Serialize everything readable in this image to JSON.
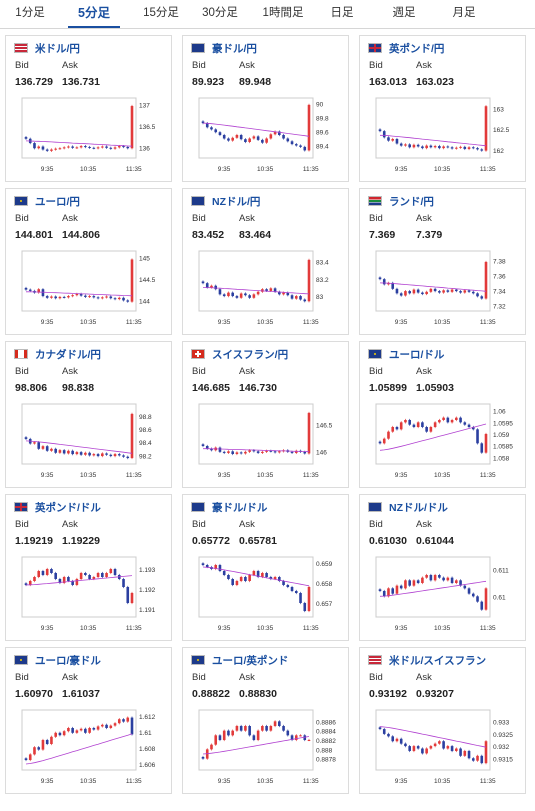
{
  "tabs": [
    "1分足",
    "5分足",
    "15分足",
    "30分足",
    "1時間足",
    "日足",
    "週足",
    "月足"
  ],
  "active_tab": 1,
  "labels": {
    "bid": "Bid",
    "ask": "Ask"
  },
  "colors": {
    "up": "#e23a3a",
    "down": "#2b3fa0",
    "ma": "#b040d0",
    "axis": "#999999",
    "accent": "#1a4fa0"
  },
  "x_ticks": [
    "9:35",
    "10:35",
    "11:35"
  ],
  "cards": [
    {
      "pair": "米ドル/円",
      "flag": "us",
      "bid": "136.729",
      "ask": "136.731",
      "y_ticks": [
        "137",
        "136.5",
        "136"
      ],
      "ylim": [
        135.8,
        137.1
      ],
      "prices": [
        136.2,
        136.1,
        135.98,
        136.02,
        135.95,
        135.92,
        135.95,
        135.97,
        135.98,
        136.0,
        136.02,
        135.99,
        136.0,
        136.03,
        136.01,
        135.99,
        135.98,
        136.0,
        136.02,
        135.99,
        135.97,
        136.0,
        136.03,
        136.01,
        135.98,
        136.96
      ],
      "ma": [
        136.15,
        136.02
      ]
    },
    {
      "pair": "豪ドル/円",
      "flag": "au",
      "bid": "89.923",
      "ask": "89.948",
      "y_ticks": [
        "90",
        "89.8",
        "89.6",
        "89.4"
      ],
      "ylim": [
        89.25,
        90.05
      ],
      "prices": [
        89.72,
        89.66,
        89.63,
        89.59,
        89.55,
        89.5,
        89.47,
        89.51,
        89.55,
        89.49,
        89.45,
        89.5,
        89.53,
        89.48,
        89.44,
        89.5,
        89.56,
        89.6,
        89.55,
        89.5,
        89.46,
        89.42,
        89.4,
        89.38,
        89.33,
        89.98
      ],
      "ma": [
        89.72,
        89.52
      ]
    },
    {
      "pair": "英ポンド/円",
      "flag": "gb",
      "bid": "163.013",
      "ask": "163.023",
      "y_ticks": [
        "163",
        "162.5",
        "162"
      ],
      "ylim": [
        161.85,
        163.2
      ],
      "prices": [
        162.45,
        162.3,
        162.22,
        162.26,
        162.15,
        162.1,
        162.13,
        162.06,
        162.12,
        162.08,
        162.04,
        162.1,
        162.06,
        162.09,
        162.04,
        162.08,
        162.06,
        162.03,
        162.05,
        162.07,
        162.02,
        162.06,
        162.04,
        162.01,
        161.98,
        163.05
      ],
      "ma": [
        162.35,
        162.08
      ]
    },
    {
      "pair": "ユーロ/円",
      "flag": "eu",
      "bid": "144.801",
      "ask": "144.806",
      "y_ticks": [
        "145",
        "144.5",
        "144"
      ],
      "ylim": [
        143.8,
        145.1
      ],
      "prices": [
        144.25,
        144.22,
        144.18,
        144.26,
        144.1,
        144.06,
        144.09,
        144.05,
        144.08,
        144.07,
        144.1,
        144.12,
        144.15,
        144.11,
        144.08,
        144.1,
        144.07,
        144.05,
        144.07,
        144.09,
        144.05,
        144.03,
        144.06,
        144.0,
        143.97,
        144.95
      ],
      "ma": [
        144.2,
        144.1
      ]
    },
    {
      "pair": "NZドル/円",
      "flag": "nz",
      "bid": "83.452",
      "ask": "83.464",
      "y_ticks": [
        "83.4",
        "83.2",
        "83"
      ],
      "ylim": [
        82.85,
        83.5
      ],
      "prices": [
        83.15,
        83.1,
        83.12,
        83.08,
        83.02,
        83.0,
        83.04,
        83.0,
        82.98,
        83.03,
        83.01,
        82.98,
        83.02,
        83.05,
        83.08,
        83.06,
        83.09,
        83.05,
        83.02,
        83.04,
        83.01,
        82.97,
        83.0,
        82.96,
        82.94,
        83.42
      ],
      "ma": [
        83.1,
        83.02
      ]
    },
    {
      "pair": "ランド/円",
      "flag": "za",
      "bid": "7.369",
      "ask": "7.379",
      "y_ticks": [
        "7.38",
        "7.36",
        "7.34",
        "7.32"
      ],
      "ylim": [
        7.315,
        7.39
      ],
      "prices": [
        7.355,
        7.348,
        7.35,
        7.342,
        7.336,
        7.333,
        7.339,
        7.336,
        7.341,
        7.337,
        7.335,
        7.338,
        7.342,
        7.339,
        7.337,
        7.34,
        7.338,
        7.341,
        7.339,
        7.337,
        7.34,
        7.338,
        7.336,
        7.332,
        7.329,
        7.378
      ],
      "ma": [
        7.35,
        7.338
      ]
    },
    {
      "pair": "カナダドル/円",
      "flag": "ca",
      "bid": "98.806",
      "ask": "98.838",
      "y_ticks": [
        "98.8",
        "98.6",
        "98.4",
        "98.2"
      ],
      "ylim": [
        98.1,
        98.95
      ],
      "prices": [
        98.45,
        98.38,
        98.4,
        98.3,
        98.34,
        98.27,
        98.3,
        98.24,
        98.28,
        98.23,
        98.27,
        98.22,
        98.25,
        98.21,
        98.24,
        98.2,
        98.22,
        98.19,
        98.23,
        98.21,
        98.19,
        98.22,
        98.2,
        98.18,
        98.16,
        98.83
      ],
      "ma": [
        98.42,
        98.22
      ]
    },
    {
      "pair": "スイスフラン/円",
      "flag": "ch",
      "bid": "146.685",
      "ask": "146.730",
      "y_ticks": [
        "146.5",
        "146"
      ],
      "ylim": [
        145.8,
        146.85
      ],
      "prices": [
        146.1,
        146.05,
        146.02,
        146.07,
        145.99,
        145.97,
        146.0,
        145.95,
        145.98,
        145.96,
        145.99,
        146.02,
        146.0,
        145.97,
        145.99,
        146.01,
        146.0,
        145.98,
        146.0,
        146.02,
        145.99,
        145.97,
        146.01,
        145.99,
        145.96,
        146.72
      ],
      "ma": [
        146.05,
        145.99
      ]
    },
    {
      "pair": "ユーロ/ドル",
      "flag": "eu",
      "bid": "1.05899",
      "ask": "1.05903",
      "y_ticks": [
        "1.06",
        "1.0595",
        "1.059",
        "1.0585",
        "1.058"
      ],
      "ylim": [
        1.0578,
        1.0602
      ],
      "prices": [
        1.0586,
        1.0588,
        1.0591,
        1.0593,
        1.0592,
        1.0595,
        1.0596,
        1.0594,
        1.0593,
        1.0595,
        1.0593,
        1.0591,
        1.0593,
        1.0595,
        1.0596,
        1.0597,
        1.0595,
        1.0596,
        1.0597,
        1.0595,
        1.0594,
        1.0593,
        1.0592,
        1.0586,
        1.0582,
        1.059
      ],
      "ma": [
        1.0583,
        1.0595
      ]
    },
    {
      "pair": "英ポンド/ドル",
      "flag": "gb",
      "bid": "1.19219",
      "ask": "1.19229",
      "y_ticks": [
        "1.193",
        "1.192",
        "1.191"
      ],
      "ylim": [
        1.1907,
        1.1935
      ],
      "prices": [
        1.1922,
        1.1924,
        1.1926,
        1.1929,
        1.1927,
        1.193,
        1.1928,
        1.1925,
        1.1923,
        1.1926,
        1.1924,
        1.1922,
        1.1925,
        1.1928,
        1.1927,
        1.1925,
        1.1926,
        1.1928,
        1.1926,
        1.1928,
        1.193,
        1.1927,
        1.1925,
        1.1921,
        1.1913,
        1.1918
      ],
      "ma": [
        1.1922,
        1.1927
      ]
    },
    {
      "pair": "豪ドル/ドル",
      "flag": "au",
      "bid": "0.65772",
      "ask": "0.65781",
      "y_ticks": [
        "0.659",
        "0.658",
        "0.657"
      ],
      "ylim": [
        0.6564,
        0.6592
      ],
      "prices": [
        0.6589,
        0.6588,
        0.6587,
        0.6589,
        0.6586,
        0.6584,
        0.6582,
        0.6579,
        0.6581,
        0.6583,
        0.6581,
        0.6584,
        0.6586,
        0.6583,
        0.6585,
        0.6583,
        0.6582,
        0.6583,
        0.6581,
        0.6579,
        0.6578,
        0.6576,
        0.6575,
        0.657,
        0.6566,
        0.6578
      ],
      "ma": [
        0.6588,
        0.6578
      ]
    },
    {
      "pair": "NZドル/ドル",
      "flag": "nz",
      "bid": "0.61030",
      "ask": "0.61044",
      "y_ticks": [
        "0.611",
        "0.61"
      ],
      "ylim": [
        0.6093,
        0.6114
      ],
      "prices": [
        0.6102,
        0.61,
        0.6103,
        0.6101,
        0.6104,
        0.6103,
        0.6106,
        0.6104,
        0.6106,
        0.6105,
        0.6107,
        0.6108,
        0.6106,
        0.6108,
        0.6107,
        0.6106,
        0.6107,
        0.6105,
        0.6106,
        0.6104,
        0.6103,
        0.6101,
        0.61,
        0.6098,
        0.6095,
        0.6103
      ],
      "ma": [
        0.61,
        0.6106
      ]
    },
    {
      "pair": "ユーロ/豪ドル",
      "flag": "eu",
      "bid": "1.60970",
      "ask": "1.61037",
      "y_ticks": [
        "1.612",
        "1.61",
        "1.608",
        "1.606"
      ],
      "ylim": [
        1.6055,
        1.6125
      ],
      "prices": [
        1.6065,
        1.6072,
        1.6081,
        1.6078,
        1.609,
        1.6085,
        1.6094,
        1.6099,
        1.6096,
        1.6101,
        1.6105,
        1.6099,
        1.6102,
        1.6104,
        1.6099,
        1.6105,
        1.6103,
        1.6107,
        1.6109,
        1.6105,
        1.6108,
        1.6111,
        1.6116,
        1.6113,
        1.6118,
        1.6097
      ],
      "ma": [
        1.606,
        1.61
      ]
    },
    {
      "pair": "ユーロ/英ポンド",
      "flag": "eu",
      "bid": "0.88822",
      "ask": "0.88830",
      "y_ticks": [
        "0.8886",
        "0.8884",
        "0.8882",
        "0.888",
        "0.8878"
      ],
      "ylim": [
        0.8876,
        0.8888
      ],
      "prices": [
        0.8878,
        0.888,
        0.8881,
        0.8883,
        0.8882,
        0.8884,
        0.8883,
        0.8884,
        0.8885,
        0.8884,
        0.8885,
        0.8883,
        0.8882,
        0.8884,
        0.8885,
        0.8884,
        0.8885,
        0.8886,
        0.8885,
        0.8884,
        0.8883,
        0.8882,
        0.8883,
        0.8883,
        0.8882,
        0.8882
      ],
      "ma": [
        0.8879,
        0.8883
      ]
    },
    {
      "pair": "米ドル/スイスフラン",
      "flag": "us",
      "bid": "0.93192",
      "ask": "0.93207",
      "y_ticks": [
        "0.933",
        "0.9325",
        "0.932",
        "0.9315"
      ],
      "ylim": [
        0.9311,
        0.9334
      ],
      "prices": [
        0.9327,
        0.9325,
        0.9324,
        0.9322,
        0.9323,
        0.9321,
        0.932,
        0.9318,
        0.932,
        0.9319,
        0.9317,
        0.9319,
        0.932,
        0.9321,
        0.9322,
        0.9319,
        0.932,
        0.9318,
        0.9319,
        0.9316,
        0.9318,
        0.9315,
        0.9314,
        0.9316,
        0.9313,
        0.9322
      ],
      "ma": [
        0.9328,
        0.9319
      ]
    }
  ]
}
